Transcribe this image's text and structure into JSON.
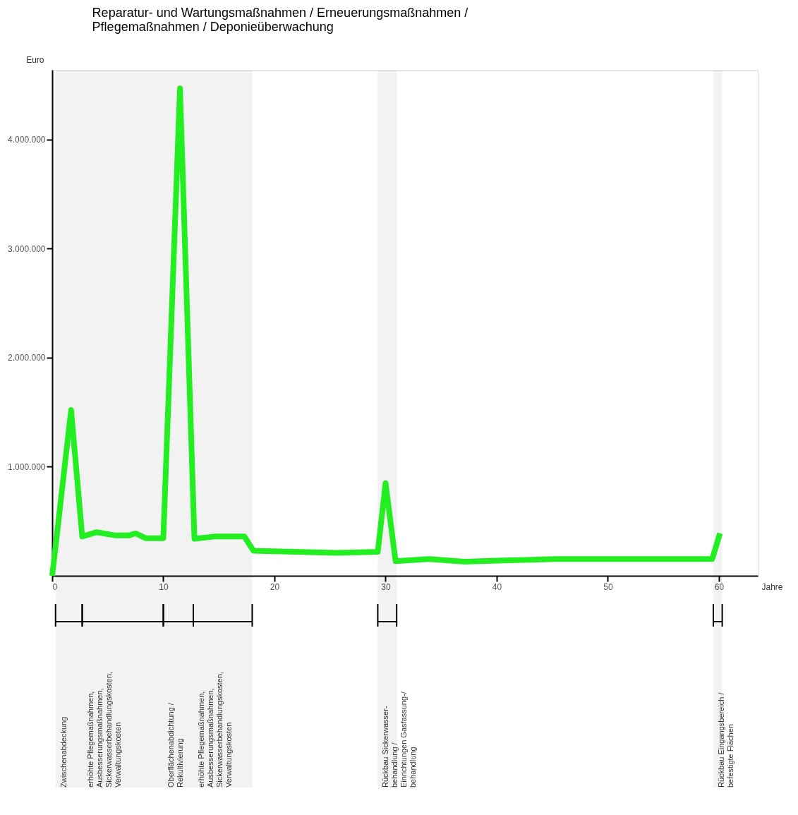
{
  "chart_data": {
    "type": "line",
    "title": [
      "Reparatur- und Wartungsmaßnahmen / Erneuerungsmaßnahmen /",
      "Pflegemaßnahmen / Deponieüberwachung"
    ],
    "xlabel": "Jahre",
    "ylabel": "Euro",
    "x": [
      0,
      1.7,
      2.7,
      4.0,
      5.7,
      6.9,
      7.5,
      8.4,
      10,
      11.5,
      12.8,
      14.6,
      15.5,
      17.3,
      18.1,
      21.8,
      25.6,
      29.3,
      30.0,
      30.9,
      33.9,
      37.1,
      40.6,
      45.3,
      59.4,
      60.1
    ],
    "series": [
      {
        "color": "#22ee22",
        "values": [
          0,
          1520000,
          360000,
          400000,
          370000,
          370000,
          390000,
          345000,
          345000,
          4470000,
          340000,
          360000,
          360000,
          360000,
          230000,
          220000,
          210000,
          220000,
          850000,
          135000,
          154000,
          130000,
          140000,
          154000,
          154000,
          390000
        ]
      }
    ],
    "xlim": [
      0,
      63.5
    ],
    "ylim": [
      0,
      4640000
    ],
    "xticks": [
      0,
      10,
      20,
      30,
      40,
      50,
      60
    ],
    "yticks": [
      {
        "value": 1000000,
        "label": "1.000.000"
      },
      {
        "value": 2000000,
        "label": "2.000.000"
      },
      {
        "value": 3000000,
        "label": "3.000.000"
      },
      {
        "value": 4000000,
        "label": "4.000.000"
      }
    ],
    "grid": false,
    "marker": "none",
    "line_style": "solid",
    "bands": [
      {
        "axis": "x",
        "from": 0.3,
        "to": 2.7,
        "label": "Zwischenabdeckung"
      },
      {
        "axis": "x",
        "from": 2.7,
        "to": 10,
        "label": "erhöhte Pflegemaßnahmen,\nAusbesserungsmaßnahmen,\nSickerwasserbehandlungskosten,\nVerwaltungskosten"
      },
      {
        "axis": "x",
        "from": 10,
        "to": 12.7,
        "label": "Oberflächenabdichtung /\nRekultivierung"
      },
      {
        "axis": "x",
        "from": 12.7,
        "to": 18,
        "label": "erhöhte Pflegemaßnahmen,\nAusbesserungsmaßnahmen,\nSickerwasserbehandlungskosten,\nVerwaltungskosten"
      },
      {
        "axis": "x",
        "from": 29.3,
        "to": 31,
        "label": "Rückbau Sickerwasser-\nbehandlung /\nEinrichtungen Gasfassung-/\nbehandlung"
      },
      {
        "axis": "x",
        "from": 59.5,
        "to": 60.3,
        "label": "Rückbau Eingangsbereich /\nbefestigte Flächen"
      }
    ]
  }
}
